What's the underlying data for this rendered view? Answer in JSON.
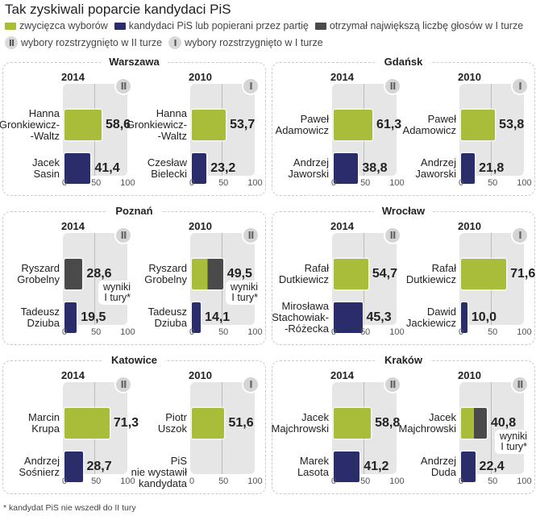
{
  "title": "Tak zyskiwali poparcie kandydaci PiS",
  "legend": {
    "colors": [
      {
        "key": "winner",
        "label": "zwycięzca wyborów",
        "color": "#a9bd3a"
      },
      {
        "key": "pis",
        "label": "kandydaci PiS lub popierani przez partię",
        "color": "#2b2d6b"
      },
      {
        "key": "first_round_max",
        "label": "otrzymał największą liczbę głosów w I turze",
        "color": "#4a4a4a"
      }
    ],
    "rounds": [
      {
        "symbol": "II",
        "label": "wybory rozstrzygnięto w II turze"
      },
      {
        "symbol": "I",
        "label": "wybory rozstrzygnięto w I turze"
      }
    ]
  },
  "footnote": "* kandydat PiS nie wszedł do II tury",
  "chart_data": {
    "type": "bar",
    "title": "Tak zyskiwali poparcie kandydaci PiS",
    "xlim": [
      0,
      100
    ],
    "ticks": [
      "0",
      "50",
      "100"
    ],
    "grid": true,
    "legend_position": "top-left",
    "note_label": "wyniki I tury*",
    "no_candidate_label": "PiS nie wystawił kandydata",
    "panels": [
      {
        "city": "Warszawa",
        "charts": [
          {
            "year": "2014",
            "round": "II",
            "note": false,
            "bars": [
              {
                "name": "Hanna Gronkiewicz--Waltz",
                "lines": [
                  "Hanna",
                  "Gronkiewicz-",
                  "-Waltz"
                ],
                "value": 58.6,
                "label": "58,6",
                "type": "winner"
              },
              {
                "name": "Jacek Sasin",
                "lines": [
                  "Jacek",
                  "Sasin"
                ],
                "value": 41.4,
                "label": "41,4",
                "type": "pis"
              }
            ]
          },
          {
            "year": "2010",
            "round": "I",
            "note": false,
            "bars": [
              {
                "name": "Hanna Gronkiewicz--Waltz",
                "lines": [
                  "Hanna",
                  "Gronkiewicz-",
                  "-Waltz"
                ],
                "value": 53.7,
                "label": "53,7",
                "type": "winner"
              },
              {
                "name": "Czesław Bielecki",
                "lines": [
                  "Czesław",
                  "Bielecki"
                ],
                "value": 23.2,
                "label": "23,2",
                "type": "pis"
              }
            ]
          }
        ]
      },
      {
        "city": "Gdańsk",
        "charts": [
          {
            "year": "2014",
            "round": "II",
            "note": false,
            "bars": [
              {
                "name": "Paweł Adamowicz",
                "lines": [
                  "Paweł",
                  "Adamowicz"
                ],
                "value": 61.3,
                "label": "61,3",
                "type": "winner"
              },
              {
                "name": "Andrzej Jaworski",
                "lines": [
                  "Andrzej",
                  "Jaworski"
                ],
                "value": 38.8,
                "label": "38,8",
                "type": "pis"
              }
            ]
          },
          {
            "year": "2010",
            "round": "I",
            "note": false,
            "bars": [
              {
                "name": "Paweł Adamowicz",
                "lines": [
                  "Paweł",
                  "Adamowicz"
                ],
                "value": 53.8,
                "label": "53,8",
                "type": "winner"
              },
              {
                "name": "Andrzej Jaworski",
                "lines": [
                  "Andrzej",
                  "Jaworski"
                ],
                "value": 21.8,
                "label": "21,8",
                "type": "pis"
              }
            ]
          }
        ]
      },
      {
        "city": "Poznań",
        "charts": [
          {
            "year": "2014",
            "round": "II",
            "note": true,
            "bars": [
              {
                "name": "Ryszard Grobelny",
                "lines": [
                  "Ryszard",
                  "Grobelny"
                ],
                "value": 28.6,
                "label": "28,6",
                "type": "first_round_max"
              },
              {
                "name": "Tadeusz Dziuba",
                "lines": [
                  "Tadeusz",
                  "Dziuba"
                ],
                "value": 19.5,
                "label": "19,5",
                "type": "pis"
              }
            ]
          },
          {
            "year": "2010",
            "round": "II",
            "note": true,
            "bars": [
              {
                "name": "Ryszard Grobelny",
                "lines": [
                  "Ryszard",
                  "Grobelny"
                ],
                "value": 49.5,
                "label": "49,5",
                "type": "winner_first_round_max"
              },
              {
                "name": "Tadeusz Dziuba",
                "lines": [
                  "Tadeusz",
                  "Dziuba"
                ],
                "value": 14.1,
                "label": "14,1",
                "type": "pis"
              }
            ]
          }
        ]
      },
      {
        "city": "Wrocław",
        "charts": [
          {
            "year": "2014",
            "round": "II",
            "note": false,
            "bars": [
              {
                "name": "Rafał Dutkiewicz",
                "lines": [
                  "Rafał",
                  "Dutkiewicz"
                ],
                "value": 54.7,
                "label": "54,7",
                "type": "winner"
              },
              {
                "name": "Mirosława Stachowiak--Różecka",
                "lines": [
                  "Mirosława",
                  "Stachowiak-",
                  "-Różecka"
                ],
                "value": 45.3,
                "label": "45,3",
                "type": "pis"
              }
            ]
          },
          {
            "year": "2010",
            "round": "I",
            "note": false,
            "bars": [
              {
                "name": "Rafał Dutkiewicz",
                "lines": [
                  "Rafał",
                  "Dutkiewicz"
                ],
                "value": 71.6,
                "label": "71,6",
                "type": "winner"
              },
              {
                "name": "Dawid Jackiewicz",
                "lines": [
                  "Dawid",
                  "Jackiewicz"
                ],
                "value": 10.0,
                "label": "10,0",
                "type": "pis"
              }
            ]
          }
        ]
      },
      {
        "city": "Katowice",
        "charts": [
          {
            "year": "2014",
            "round": "II",
            "note": false,
            "bars": [
              {
                "name": "Marcin Krupa",
                "lines": [
                  "Marcin",
                  "Krupa"
                ],
                "value": 71.3,
                "label": "71,3",
                "type": "winner"
              },
              {
                "name": "Andrzej Sośnierz",
                "lines": [
                  "Andrzej",
                  "Sośnierz"
                ],
                "value": 28.7,
                "label": "28,7",
                "type": "pis"
              }
            ]
          },
          {
            "year": "2010",
            "round": "I",
            "note": false,
            "bars": [
              {
                "name": "Piotr Uszok",
                "lines": [
                  "Piotr",
                  "Uszok"
                ],
                "value": 51.6,
                "label": "51,6",
                "type": "winner"
              },
              {
                "name": "PiS nie wystawił kandydata",
                "lines": [
                  "PiS",
                  "nie wystawił",
                  "kandydata"
                ],
                "value": null,
                "label": "",
                "type": "none"
              }
            ]
          }
        ]
      },
      {
        "city": "Kraków",
        "charts": [
          {
            "year": "2014",
            "round": "II",
            "note": false,
            "bars": [
              {
                "name": "Jacek Majchrowski",
                "lines": [
                  "Jacek",
                  "Majchrowski"
                ],
                "value": 58.8,
                "label": "58,8",
                "type": "winner"
              },
              {
                "name": "Marek Lasota",
                "lines": [
                  "Marek",
                  "Lasota"
                ],
                "value": 41.2,
                "label": "41,2",
                "type": "pis"
              }
            ]
          },
          {
            "year": "2010",
            "round": "II",
            "note": true,
            "bars": [
              {
                "name": "Jacek Majchrowski",
                "lines": [
                  "Jacek",
                  "Majchrowski"
                ],
                "value": 40.8,
                "label": "40,8",
                "type": "winner_first_round_max"
              },
              {
                "name": "Andrzej Duda",
                "lines": [
                  "Andrzej",
                  "Duda"
                ],
                "value": 22.4,
                "label": "22,4",
                "type": "pis"
              }
            ]
          }
        ]
      }
    ]
  }
}
